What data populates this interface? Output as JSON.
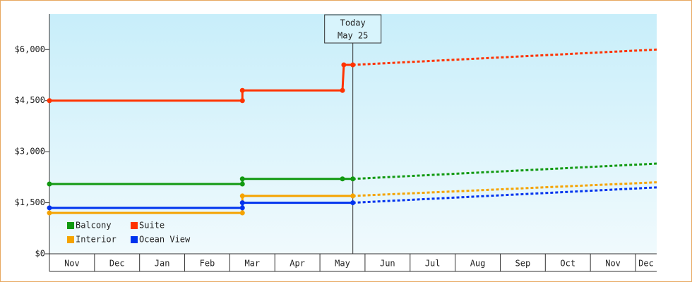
{
  "chart_data": {
    "type": "line",
    "categories": [
      "Nov",
      "Dec",
      "Jan",
      "Feb",
      "Mar",
      "Apr",
      "May",
      "Jun",
      "Jul",
      "Aug",
      "Sep",
      "Oct",
      "Nov",
      "Dec"
    ],
    "xlim": [
      0,
      13.47
    ],
    "ylim": [
      0,
      7000
    ],
    "yticks": [
      {
        "value": 0,
        "label": "$0"
      },
      {
        "value": 1500,
        "label": "$1,500"
      },
      {
        "value": 3000,
        "label": "$3,000"
      },
      {
        "value": 4500,
        "label": "$4,500"
      },
      {
        "value": 6000,
        "label": "$6,000"
      }
    ],
    "grid": false,
    "legend": "lower left",
    "annotation": {
      "x": 6.73,
      "lines": [
        "Today",
        "May 25"
      ]
    },
    "series": [
      {
        "name": "Balcony",
        "color": "#119911",
        "x": [
          0,
          4.28,
          4.28,
          6.5,
          6.73
        ],
        "values": [
          2050,
          2050,
          2200,
          2200,
          2200
        ],
        "forecast": {
          "x": [
            6.73,
            13.47
          ],
          "values": [
            2200,
            2650
          ]
        }
      },
      {
        "name": "Suite",
        "color": "#ff3300",
        "x": [
          0,
          4.28,
          4.28,
          6.5,
          6.53,
          6.73
        ],
        "values": [
          4500,
          4500,
          4800,
          4800,
          5550,
          5550
        ],
        "forecast": {
          "x": [
            6.73,
            13.47
          ],
          "values": [
            5550,
            6000
          ]
        }
      },
      {
        "name": "Interior",
        "color": "#f5a300",
        "x": [
          0,
          4.28,
          4.28,
          6.73
        ],
        "values": [
          1200,
          1200,
          1700,
          1700
        ],
        "forecast": {
          "x": [
            6.73,
            13.47
          ],
          "values": [
            1700,
            2100
          ]
        }
      },
      {
        "name": "Ocean View",
        "color": "#0033ee",
        "x": [
          0,
          4.28,
          4.28,
          6.73
        ],
        "values": [
          1350,
          1350,
          1500,
          1500
        ],
        "forecast": {
          "x": [
            6.73,
            13.47
          ],
          "values": [
            1500,
            1950
          ]
        }
      }
    ]
  }
}
